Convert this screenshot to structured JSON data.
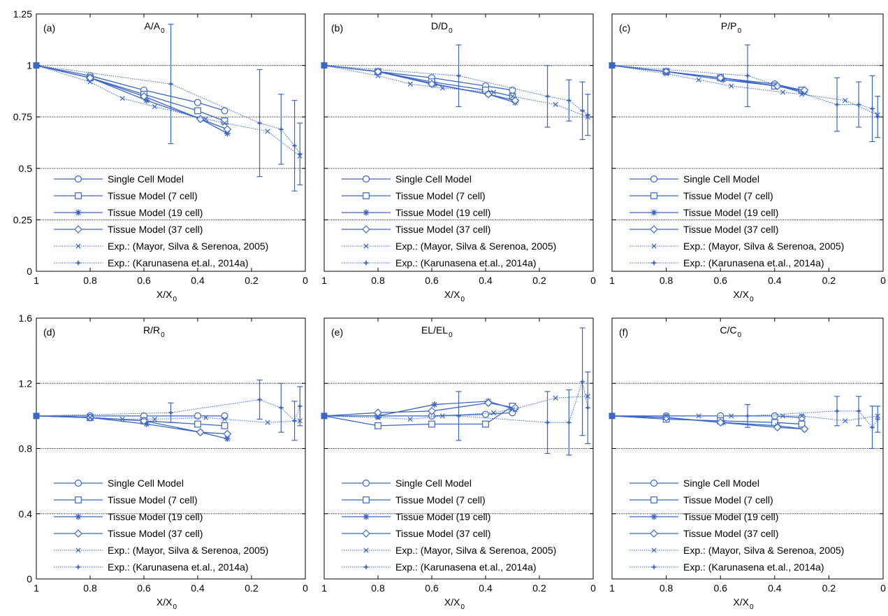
{
  "colors": {
    "series": "#3a66c8",
    "axis": "#000000",
    "grid": "#000000"
  },
  "legend_entries": [
    {
      "label": "Single Cell Model",
      "marker": "circle",
      "dashed": false
    },
    {
      "label": "Tissue Model (7 cell)",
      "marker": "square",
      "dashed": false
    },
    {
      "label": "Tissue Model (19 cell)",
      "marker": "asterisk",
      "dashed": false
    },
    {
      "label": "Tissue Model (37 cell)",
      "marker": "diamond",
      "dashed": false
    },
    {
      "label": "Exp.: (Mayor, Silva & Serenoa, 2005)",
      "marker": "x",
      "dashed": true
    },
    {
      "label": "Exp.: (Karunasena et.al., 2014a)",
      "marker": "star",
      "dashed": true
    }
  ],
  "chart_data": [
    {
      "type": "line",
      "panel_label": "(a)",
      "title": "A/A",
      "title_sub": "0",
      "xlabel": "X/X",
      "xlabel_sub": "0",
      "xlim": [
        1,
        0
      ],
      "ylim": [
        0,
        1.25
      ],
      "xticks": [
        "1",
        "0.8",
        "0.6",
        "0.4",
        "0.2",
        "0"
      ],
      "xtick_values": [
        1,
        0.8,
        0.6,
        0.4,
        0.2,
        0
      ],
      "yticks": [
        "0",
        "0.25",
        "0.5",
        "0.75",
        "1",
        "1.25"
      ],
      "ytick_values": [
        0,
        0.25,
        0.5,
        0.75,
        1,
        1.25
      ],
      "grid": "horizontal dotted",
      "legend": "bottom-left",
      "series": [
        {
          "name": "Single Cell Model",
          "x": [
            1,
            0.8,
            0.6,
            0.4,
            0.3
          ],
          "y": [
            1,
            0.95,
            0.88,
            0.82,
            0.78
          ]
        },
        {
          "name": "Tissue Model (7 cell)",
          "x": [
            1,
            0.8,
            0.6,
            0.4,
            0.3
          ],
          "y": [
            1,
            0.94,
            0.86,
            0.78,
            0.73
          ]
        },
        {
          "name": "Tissue Model (19 cell)",
          "x": [
            1,
            0.8,
            0.59,
            0.39,
            0.29
          ],
          "y": [
            1,
            0.94,
            0.83,
            0.74,
            0.67
          ]
        },
        {
          "name": "Tissue Model (37 cell)",
          "x": [
            1,
            0.8,
            0.6,
            0.39,
            0.29
          ],
          "y": [
            1,
            0.94,
            0.85,
            0.74,
            0.69
          ]
        },
        {
          "name": "Exp.: (Mayor, Silva & Serenoa, 2005)",
          "x": [
            1,
            0.8,
            0.68,
            0.56,
            0.37,
            0.3,
            0.14,
            0.02
          ],
          "y": [
            1,
            0.92,
            0.84,
            0.8,
            0.74,
            0.72,
            0.68,
            0.56
          ]
        },
        {
          "name": "Exp.: (Karunasena et.al., 2014a)",
          "x": [
            1,
            0.5,
            0.17,
            0.09,
            0.04,
            0.02
          ],
          "y": [
            1,
            0.91,
            0.72,
            0.69,
            0.61,
            0.57
          ],
          "err": [
            0,
            0.29,
            0.26,
            0.17,
            0.22,
            0.15
          ]
        }
      ]
    },
    {
      "type": "line",
      "panel_label": "(b)",
      "title": "D/D",
      "title_sub": "0",
      "xlabel": "X/X",
      "xlabel_sub": "0",
      "xlim": [
        1,
        0
      ],
      "ylim": [
        0,
        1.25
      ],
      "xticks": [
        "1",
        "0.8",
        "0.6",
        "0.4",
        "0.2",
        "0"
      ],
      "xtick_values": [
        1,
        0.8,
        0.6,
        0.4,
        0.2,
        0
      ],
      "yticks": [],
      "ytick_values": [
        0,
        0.25,
        0.5,
        0.75,
        1,
        1.25
      ],
      "grid": "horizontal dotted",
      "legend": "bottom-left",
      "series": [
        {
          "name": "Single Cell Model",
          "x": [
            1,
            0.8,
            0.6,
            0.4,
            0.3
          ],
          "y": [
            1,
            0.97,
            0.94,
            0.9,
            0.88
          ]
        },
        {
          "name": "Tissue Model (7 cell)",
          "x": [
            1,
            0.8,
            0.6,
            0.4,
            0.3
          ],
          "y": [
            1,
            0.97,
            0.92,
            0.88,
            0.85
          ]
        },
        {
          "name": "Tissue Model (19 cell)",
          "x": [
            1,
            0.8,
            0.59,
            0.39,
            0.29
          ],
          "y": [
            1,
            0.97,
            0.91,
            0.86,
            0.82
          ]
        },
        {
          "name": "Tissue Model (37 cell)",
          "x": [
            1,
            0.8,
            0.6,
            0.39,
            0.29
          ],
          "y": [
            1,
            0.97,
            0.91,
            0.86,
            0.83
          ]
        },
        {
          "name": "Exp.: (Mayor, Silva & Serenoa, 2005)",
          "x": [
            1,
            0.8,
            0.68,
            0.56,
            0.37,
            0.3,
            0.14,
            0.02
          ],
          "y": [
            1,
            0.95,
            0.91,
            0.89,
            0.87,
            0.85,
            0.81,
            0.75
          ]
        },
        {
          "name": "Exp.: (Karunasena et.al., 2014a)",
          "x": [
            1,
            0.5,
            0.17,
            0.09,
            0.04,
            0.02
          ],
          "y": [
            1,
            0.95,
            0.85,
            0.83,
            0.78,
            0.76
          ],
          "err": [
            0,
            0.15,
            0.15,
            0.1,
            0.14,
            0.1
          ]
        }
      ]
    },
    {
      "type": "line",
      "panel_label": "(c)",
      "title": "P/P",
      "title_sub": "0",
      "xlabel": "X/X",
      "xlabel_sub": "0",
      "xlim": [
        1,
        0
      ],
      "ylim": [
        0,
        1.25
      ],
      "xticks": [
        "1",
        "0.8",
        "0.6",
        "0.4",
        "0.2",
        "0"
      ],
      "xtick_values": [
        1,
        0.8,
        0.6,
        0.4,
        0.2,
        0
      ],
      "yticks": [],
      "ytick_values": [
        0,
        0.25,
        0.5,
        0.75,
        1,
        1.25
      ],
      "grid": "horizontal dotted",
      "legend": "bottom-left",
      "series": [
        {
          "name": "Single Cell Model",
          "x": [
            1,
            0.8,
            0.6,
            0.4,
            0.3
          ],
          "y": [
            1,
            0.97,
            0.94,
            0.91,
            0.88
          ]
        },
        {
          "name": "Tissue Model (7 cell)",
          "x": [
            1,
            0.8,
            0.6,
            0.4,
            0.3
          ],
          "y": [
            1,
            0.97,
            0.94,
            0.9,
            0.88
          ]
        },
        {
          "name": "Tissue Model (19 cell)",
          "x": [
            1,
            0.8,
            0.59,
            0.39,
            0.29
          ],
          "y": [
            1,
            0.97,
            0.93,
            0.9,
            0.87
          ]
        },
        {
          "name": "Tissue Model (37 cell)",
          "x": [
            1,
            0.8,
            0.6,
            0.39,
            0.29
          ],
          "y": [
            1,
            0.97,
            0.94,
            0.9,
            0.88
          ]
        },
        {
          "name": "Exp.: (Mayor, Silva & Serenoa, 2005)",
          "x": [
            1,
            0.8,
            0.68,
            0.56,
            0.37,
            0.3,
            0.14,
            0.02
          ],
          "y": [
            1,
            0.96,
            0.93,
            0.9,
            0.87,
            0.86,
            0.83,
            0.76
          ]
        },
        {
          "name": "Exp.: (Karunasena et.al., 2014a)",
          "x": [
            1,
            0.5,
            0.17,
            0.09,
            0.04,
            0.02
          ],
          "y": [
            1,
            0.95,
            0.81,
            0.81,
            0.79,
            0.75
          ],
          "err": [
            0,
            0.15,
            0.13,
            0.11,
            0.16,
            0.1
          ]
        }
      ]
    },
    {
      "type": "line",
      "panel_label": "(d)",
      "title": "R/R",
      "title_sub": "0",
      "xlabel": "X/X",
      "xlabel_sub": "0",
      "xlim": [
        1,
        0
      ],
      "ylim": [
        0,
        1.6
      ],
      "xticks": [
        "1",
        "0.8",
        "0.6",
        "0.4",
        "0.2",
        "0"
      ],
      "xtick_values": [
        1,
        0.8,
        0.6,
        0.4,
        0.2,
        0
      ],
      "yticks": [
        "0",
        "0.4",
        "0.8",
        "1.2",
        "1.6"
      ],
      "ytick_values": [
        0,
        0.4,
        0.8,
        1.2,
        1.6
      ],
      "grid": "horizontal dotted",
      "legend": "bottom-left",
      "series": [
        {
          "name": "Single Cell Model",
          "x": [
            1,
            0.8,
            0.6,
            0.4,
            0.3
          ],
          "y": [
            1,
            1.0,
            1.0,
            1.0,
            1.0
          ]
        },
        {
          "name": "Tissue Model (7 cell)",
          "x": [
            1,
            0.8,
            0.6,
            0.4,
            0.3
          ],
          "y": [
            1,
            0.99,
            0.97,
            0.95,
            0.94
          ]
        },
        {
          "name": "Tissue Model (19 cell)",
          "x": [
            1,
            0.8,
            0.59,
            0.39,
            0.29
          ],
          "y": [
            1,
            0.99,
            0.95,
            0.9,
            0.86
          ]
        },
        {
          "name": "Tissue Model (37 cell)",
          "x": [
            1,
            0.8,
            0.6,
            0.39,
            0.29
          ],
          "y": [
            1,
            0.99,
            0.97,
            0.9,
            0.89
          ]
        },
        {
          "name": "Exp.: (Mayor, Silva & Serenoa, 2005)",
          "x": [
            1,
            0.8,
            0.68,
            0.56,
            0.37,
            0.3,
            0.14,
            0.02
          ],
          "y": [
            1,
            0.99,
            0.98,
            0.98,
            0.99,
            0.98,
            0.96,
            0.97
          ]
        },
        {
          "name": "Exp.: (Karunasena et.al., 2014a)",
          "x": [
            1,
            0.5,
            0.17,
            0.09,
            0.04,
            0.02
          ],
          "y": [
            1,
            1.02,
            1.1,
            1.05,
            0.97,
            1.06
          ],
          "err": [
            0,
            0.06,
            0.12,
            0.15,
            0.12,
            0.12
          ]
        }
      ]
    },
    {
      "type": "line",
      "panel_label": "(e)",
      "title": "EL/EL",
      "title_sub": "0",
      "xlabel": "X/X",
      "xlabel_sub": "0",
      "xlim": [
        1,
        0
      ],
      "ylim": [
        0,
        1.6
      ],
      "xticks": [
        "1",
        "0.8",
        "0.6",
        "0.4",
        "0.2",
        "0"
      ],
      "xtick_values": [
        1,
        0.8,
        0.6,
        0.4,
        0.2,
        0
      ],
      "yticks": [],
      "ytick_values": [
        0,
        0.4,
        0.8,
        1.2,
        1.6
      ],
      "grid": "horizontal dotted",
      "legend": "bottom-left",
      "series": [
        {
          "name": "Single Cell Model",
          "x": [
            1,
            0.8,
            0.6,
            0.4,
            0.3
          ],
          "y": [
            1,
            1.0,
            1.0,
            1.01,
            1.02
          ]
        },
        {
          "name": "Tissue Model (7 cell)",
          "x": [
            1,
            0.8,
            0.6,
            0.4,
            0.3
          ],
          "y": [
            1,
            0.94,
            0.95,
            0.95,
            1.06
          ]
        },
        {
          "name": "Tissue Model (19 cell)",
          "x": [
            1,
            0.8,
            0.59,
            0.39,
            0.29
          ],
          "y": [
            1,
            1.0,
            1.07,
            1.09,
            1.04
          ]
        },
        {
          "name": "Tissue Model (37 cell)",
          "x": [
            1,
            0.8,
            0.6,
            0.39,
            0.29
          ],
          "y": [
            1,
            1.02,
            1.03,
            1.08,
            1.05
          ]
        },
        {
          "name": "Exp.: (Mayor, Silva & Serenoa, 2005)",
          "x": [
            1,
            0.8,
            0.68,
            0.56,
            0.37,
            0.3,
            0.14,
            0.02
          ],
          "y": [
            1,
            0.99,
            0.98,
            1.0,
            1.02,
            1.04,
            1.11,
            1.12
          ]
        },
        {
          "name": "Exp.: (Karunasena et.al., 2014a)",
          "x": [
            1,
            0.5,
            0.17,
            0.09,
            0.04,
            0.02
          ],
          "y": [
            1,
            1.0,
            0.96,
            0.96,
            1.21,
            1.05
          ],
          "err": [
            0,
            0.15,
            0.19,
            0.2,
            0.33,
            0.22
          ]
        }
      ]
    },
    {
      "type": "line",
      "panel_label": "(f)",
      "title": "C/C",
      "title_sub": "0",
      "xlabel": "X/X",
      "xlabel_sub": "0",
      "xlim": [
        1,
        0
      ],
      "ylim": [
        0,
        1.6
      ],
      "xticks": [
        "1",
        "0.8",
        "0.6",
        "0.4",
        "0.2",
        "0"
      ],
      "xtick_values": [
        1,
        0.8,
        0.6,
        0.4,
        0.2,
        0
      ],
      "yticks": [],
      "ytick_values": [
        0,
        0.4,
        0.8,
        1.2,
        1.6
      ],
      "grid": "horizontal dotted",
      "legend": "bottom-left",
      "series": [
        {
          "name": "Single Cell Model",
          "x": [
            1,
            0.8,
            0.6,
            0.4,
            0.3
          ],
          "y": [
            1,
            1.0,
            1.0,
            1.0,
            0.99
          ]
        },
        {
          "name": "Tissue Model (7 cell)",
          "x": [
            1,
            0.8,
            0.6,
            0.4,
            0.3
          ],
          "y": [
            1,
            0.98,
            0.97,
            0.96,
            0.95
          ]
        },
        {
          "name": "Tissue Model (19 cell)",
          "x": [
            1,
            0.8,
            0.59,
            0.39,
            0.29
          ],
          "y": [
            1,
            0.99,
            0.96,
            0.94,
            0.92
          ]
        },
        {
          "name": "Tissue Model (37 cell)",
          "x": [
            1,
            0.8,
            0.6,
            0.39,
            0.29
          ],
          "y": [
            1,
            0.99,
            0.96,
            0.93,
            0.92
          ]
        },
        {
          "name": "Exp.: (Mayor, Silva & Serenoa, 2005)",
          "x": [
            1,
            0.8,
            0.68,
            0.56,
            0.37,
            0.3,
            0.14,
            0.02
          ],
          "y": [
            1,
            1.0,
            1.0,
            1.0,
            1.0,
            1.0,
            0.97,
            1.0
          ]
        },
        {
          "name": "Exp.: (Karunasena et.al., 2014a)",
          "x": [
            1,
            0.5,
            0.17,
            0.09,
            0.04,
            0.02
          ],
          "y": [
            1,
            1.0,
            1.03,
            1.03,
            0.93,
            0.98
          ],
          "err": [
            0,
            0.07,
            0.09,
            0.09,
            0.13,
            0.08
          ]
        }
      ]
    }
  ]
}
